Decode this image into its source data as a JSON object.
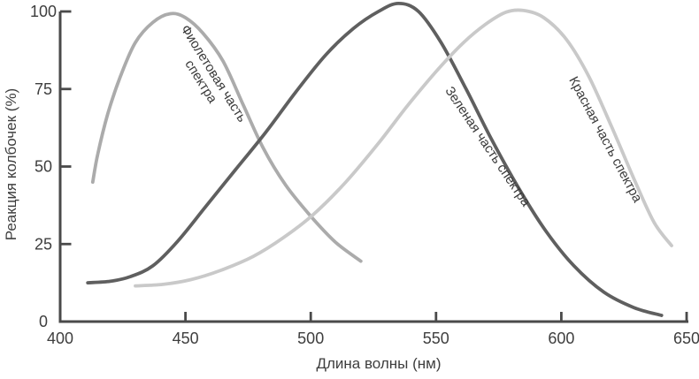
{
  "chart_data": {
    "type": "line",
    "title": "",
    "xlabel": "Длина волны (нм)",
    "ylabel": "Реакция колбочек (%)",
    "xlim": [
      400,
      650
    ],
    "ylim": [
      0,
      100
    ],
    "x_ticks": [
      400,
      450,
      500,
      550,
      600,
      650
    ],
    "y_ticks": [
      0,
      25,
      50,
      75,
      100
    ],
    "grid": false,
    "legend_position": "labels-on-curves",
    "axis_color": "#4a4a4a",
    "text_color": "#3e3e3e",
    "series": [
      {
        "name": "violet-cone",
        "label": "Фиолетовая часть спектра",
        "color": "#ababab",
        "peak_nm": 445,
        "points": [
          [
            413,
            45
          ],
          [
            415,
            54
          ],
          [
            419,
            67
          ],
          [
            424,
            79
          ],
          [
            430,
            90
          ],
          [
            437,
            96.5
          ],
          [
            444,
            99.3
          ],
          [
            450,
            98
          ],
          [
            457,
            93
          ],
          [
            465,
            84
          ],
          [
            473,
            70
          ],
          [
            481,
            56
          ],
          [
            490,
            44
          ],
          [
            500,
            34
          ],
          [
            510,
            25.5
          ],
          [
            520,
            19.5
          ]
        ]
      },
      {
        "name": "green-cone",
        "label": "Зеленая часть спектра",
        "color": "#5f5f5f",
        "peak_nm": 535,
        "points": [
          [
            411,
            12.5
          ],
          [
            420,
            13
          ],
          [
            428,
            14.5
          ],
          [
            437,
            18
          ],
          [
            447,
            26
          ],
          [
            458,
            37
          ],
          [
            470,
            49
          ],
          [
            482,
            61
          ],
          [
            494,
            74
          ],
          [
            506,
            86
          ],
          [
            517,
            94.5
          ],
          [
            527,
            100
          ],
          [
            535,
            102.6
          ],
          [
            543,
            100
          ],
          [
            552,
            90
          ],
          [
            562,
            75
          ],
          [
            572,
            59
          ],
          [
            583,
            43
          ],
          [
            594,
            29
          ],
          [
            605,
            18
          ],
          [
            617,
            9.5
          ],
          [
            629,
            4.5
          ],
          [
            640,
            2
          ]
        ]
      },
      {
        "name": "red-cone",
        "label": "Красная часть спектра",
        "color": "#c9c9c9",
        "peak_nm": 583,
        "points": [
          [
            430,
            11.5
          ],
          [
            441,
            12
          ],
          [
            452,
            13.5
          ],
          [
            464,
            16.5
          ],
          [
            477,
            21
          ],
          [
            489,
            27
          ],
          [
            501,
            34.5
          ],
          [
            514,
            45
          ],
          [
            527,
            57.5
          ],
          [
            539,
            70
          ],
          [
            551,
            81.5
          ],
          [
            561,
            90
          ],
          [
            570,
            96
          ],
          [
            578,
            99.8
          ],
          [
            585,
            100.3
          ],
          [
            593,
            98
          ],
          [
            602,
            91
          ],
          [
            611,
            79
          ],
          [
            620,
            63
          ],
          [
            629,
            46
          ],
          [
            637,
            32
          ],
          [
            644,
            24.5
          ]
        ]
      }
    ]
  }
}
